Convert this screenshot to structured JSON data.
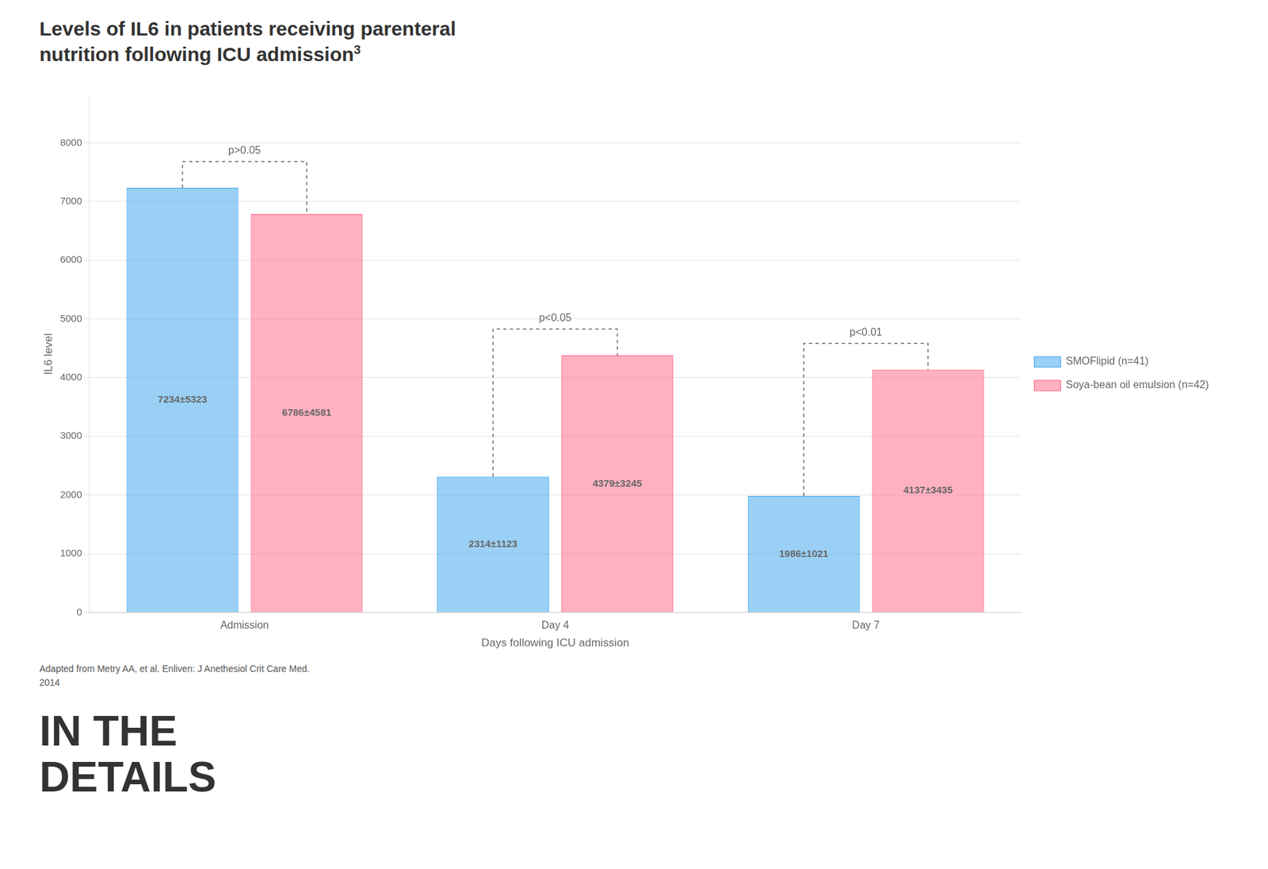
{
  "chart_data": {
    "type": "bar",
    "title": [
      "Levels of IL6 in patients receiving parenteral",
      "nutrition following ICU admission"
    ],
    "title_superscript": "3",
    "categories": [
      "Admission",
      "Day 4",
      "Day 7"
    ],
    "series": [
      {
        "name": "SMOFlipid (n=41)",
        "values": [
          7234,
          2314,
          1986
        ],
        "value_labels": [
          "7234±5323",
          "2314±1123",
          "1986±1021"
        ]
      },
      {
        "name": "Soya-bean oil emulsion (n=42)",
        "values": [
          6786,
          4379,
          4137
        ],
        "value_labels": [
          "6786±4581",
          "4379±3245",
          "4137±3435"
        ]
      }
    ],
    "xlabel": "Days following ICU admission",
    "ylabel": "IL6 level",
    "ylim": [
      0,
      8800
    ],
    "yticks": [
      0,
      1000,
      2000,
      3000,
      4000,
      5000,
      6000,
      7000,
      8000
    ],
    "grid": true,
    "legend": "right",
    "data_labels": true,
    "annotations": [
      {
        "category": "Admission",
        "text": "p>0.05"
      },
      {
        "category": "Day 4",
        "text": "p<0.05"
      },
      {
        "category": "Day 7",
        "text": "p<0.01"
      }
    ],
    "footnote": [
      "Adapted from Metry AA, et al. Enliven: J Anethesiol Crit Care Med.",
      "2014"
    ],
    "banner": [
      "IN THE",
      "DETAILS"
    ]
  }
}
